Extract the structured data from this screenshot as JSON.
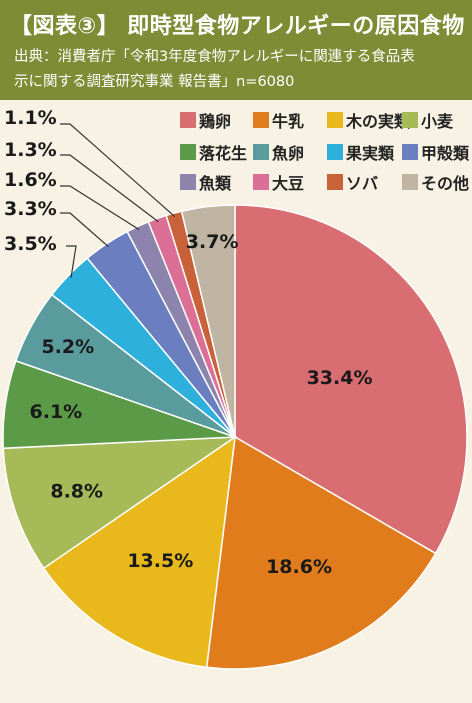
{
  "header": {
    "title": "【図表③】 即時型食物アレルギーの原因食物",
    "source_line1": "出典：消費者庁「令和3年度食物アレルギーに関連する食品表",
    "source_line2": "示に関する調査研究事業 報告書」n=6080"
  },
  "chart_data": {
    "type": "pie",
    "title": "即時型食物アレルギーの原因食物",
    "categories": [
      "鶏卵",
      "牛乳",
      "木の実類",
      "小麦",
      "落花生",
      "魚卵",
      "果実類",
      "甲殻類",
      "魚類",
      "大豆",
      "ソバ",
      "その他"
    ],
    "values": [
      33.4,
      18.6,
      13.5,
      8.8,
      6.1,
      5.2,
      3.5,
      3.3,
      1.6,
      1.3,
      1.1,
      3.7
    ],
    "labels": [
      "33.4%",
      "18.6%",
      "13.5%",
      "8.8%",
      "6.1%",
      "5.2%",
      "3.5%",
      "3.3%",
      "1.6%",
      "1.3%",
      "1.1%",
      "3.7%"
    ],
    "colors": [
      "#d96e72",
      "#e07c1c",
      "#e9b81c",
      "#a7ba58",
      "#5b9a47",
      "#5a9b9e",
      "#2db1dc",
      "#6b7fc0",
      "#8d84ae",
      "#dc6f95",
      "#c96238",
      "#bfb5a2"
    ],
    "legend_position": "top-right",
    "start": "12 o'clock, clockwise"
  }
}
